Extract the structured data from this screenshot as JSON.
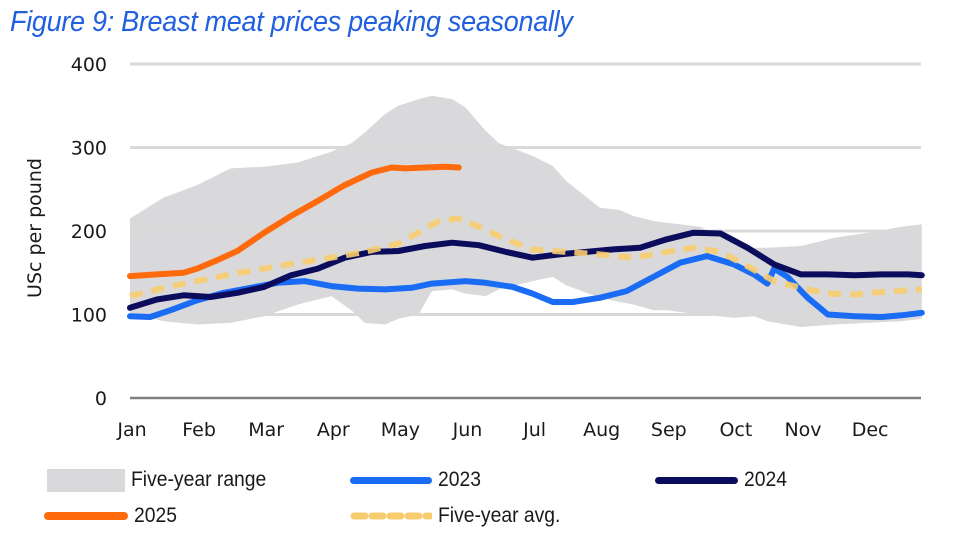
{
  "title": "Figure 9: Breast meat prices peaking seasonally",
  "chart_data": {
    "type": "line",
    "title": "Figure 9: Breast meat prices peaking seasonally",
    "xlabel": "",
    "ylabel": "USc per pound",
    "ylim": [
      0,
      400
    ],
    "yticks": [
      0,
      100,
      200,
      300,
      400
    ],
    "xlim_months": [
      0,
      11.8
    ],
    "categories": [
      "Jan",
      "Feb",
      "Mar",
      "Apr",
      "May",
      "Jun",
      "Jul",
      "Aug",
      "Sep",
      "Oct",
      "Nov",
      "Dec"
    ],
    "grid": true,
    "legend_position": "bottom",
    "colors": {
      "range": "#d9d9db",
      "s2023": "#1a6cf5",
      "s2024": "#0b0d5c",
      "s2025": "#ff6a0d",
      "avg": "#f7cc6e",
      "grid": "#d9d9d9",
      "axis": "#808080",
      "title": "#1f5fe0"
    },
    "range": {
      "name": "Five-year range",
      "x": [
        0,
        0.5,
        1.0,
        1.5,
        2.0,
        2.5,
        3.0,
        3.3,
        3.5,
        3.8,
        4.0,
        4.3,
        4.5,
        4.8,
        5.0,
        5.3,
        5.5,
        6.0,
        6.3,
        6.5,
        7.0,
        7.3,
        7.5,
        7.8,
        8.0,
        8.5,
        9.0,
        9.3,
        9.5,
        10.0,
        10.5,
        11.0,
        11.5,
        11.8
      ],
      "upper": [
        215,
        240,
        255,
        275,
        277,
        282,
        295,
        305,
        318,
        340,
        350,
        358,
        362,
        358,
        348,
        320,
        305,
        290,
        278,
        260,
        228,
        225,
        218,
        212,
        210,
        205,
        185,
        180,
        180,
        182,
        192,
        198,
        205,
        208
      ],
      "lower": [
        102,
        92,
        88,
        90,
        98,
        112,
        122,
        105,
        90,
        88,
        95,
        100,
        128,
        130,
        125,
        122,
        130,
        140,
        145,
        135,
        120,
        115,
        112,
        105,
        105,
        100,
        96,
        98,
        92,
        85,
        88,
        90,
        92,
        95
      ]
    },
    "series": [
      {
        "name": "2023",
        "x": [
          0,
          0.3,
          0.6,
          1.0,
          1.4,
          1.8,
          2.2,
          2.6,
          3.0,
          3.4,
          3.8,
          4.2,
          4.5,
          5.0,
          5.3,
          5.7,
          6.0,
          6.3,
          6.6,
          7.0,
          7.4,
          7.8,
          8.2,
          8.6,
          9.0,
          9.3,
          9.5,
          9.6,
          9.8,
          10.1,
          10.4,
          10.8,
          11.2,
          11.5,
          11.8
        ],
        "values": [
          98,
          97,
          105,
          117,
          126,
          132,
          138,
          140,
          134,
          131,
          130,
          132,
          137,
          140,
          138,
          133,
          125,
          115,
          115,
          120,
          128,
          145,
          162,
          170,
          160,
          148,
          137,
          155,
          145,
          120,
          100,
          98,
          97,
          99,
          102
        ]
      },
      {
        "name": "2024",
        "x": [
          0,
          0.4,
          0.8,
          1.2,
          1.6,
          2.0,
          2.4,
          2.8,
          3.2,
          3.6,
          4.0,
          4.4,
          4.8,
          5.2,
          5.6,
          6.0,
          6.4,
          6.8,
          7.2,
          7.6,
          8.0,
          8.4,
          8.8,
          9.2,
          9.6,
          10.0,
          10.4,
          10.8,
          11.2,
          11.6,
          11.8
        ],
        "values": [
          108,
          118,
          123,
          121,
          126,
          133,
          147,
          155,
          168,
          175,
          176,
          182,
          186,
          183,
          175,
          168,
          172,
          175,
          178,
          180,
          190,
          198,
          197,
          180,
          160,
          148,
          148,
          147,
          148,
          148,
          147
        ]
      },
      {
        "name": "2025",
        "x": [
          0,
          0.4,
          0.8,
          1.0,
          1.3,
          1.6,
          2.0,
          2.4,
          2.8,
          3.2,
          3.6,
          3.9,
          4.1,
          4.4,
          4.7,
          4.9
        ],
        "values": [
          146,
          148,
          150,
          155,
          165,
          176,
          198,
          218,
          236,
          255,
          270,
          276,
          275,
          276,
          277,
          276
        ]
      },
      {
        "name": "Five-year avg.",
        "dashed": true,
        "x": [
          0,
          0.5,
          1.0,
          1.5,
          2.0,
          2.5,
          3.0,
          3.5,
          4.0,
          4.3,
          4.6,
          4.9,
          5.2,
          5.6,
          6.0,
          6.5,
          7.0,
          7.5,
          8.0,
          8.4,
          8.8,
          9.2,
          9.6,
          10.0,
          10.4,
          10.8,
          11.2,
          11.6,
          11.8
        ],
        "values": [
          122,
          132,
          140,
          148,
          155,
          162,
          168,
          175,
          185,
          198,
          212,
          215,
          205,
          190,
          178,
          175,
          172,
          168,
          175,
          180,
          175,
          158,
          140,
          132,
          125,
          124,
          127,
          129,
          130
        ]
      }
    ]
  },
  "legend": [
    {
      "key": "range",
      "label": "Five-year range"
    },
    {
      "key": "s2023",
      "label": "2023"
    },
    {
      "key": "s2024",
      "label": "2024"
    },
    {
      "key": "s2025",
      "label": "2025"
    },
    {
      "key": "avg",
      "label": "Five-year avg."
    }
  ]
}
